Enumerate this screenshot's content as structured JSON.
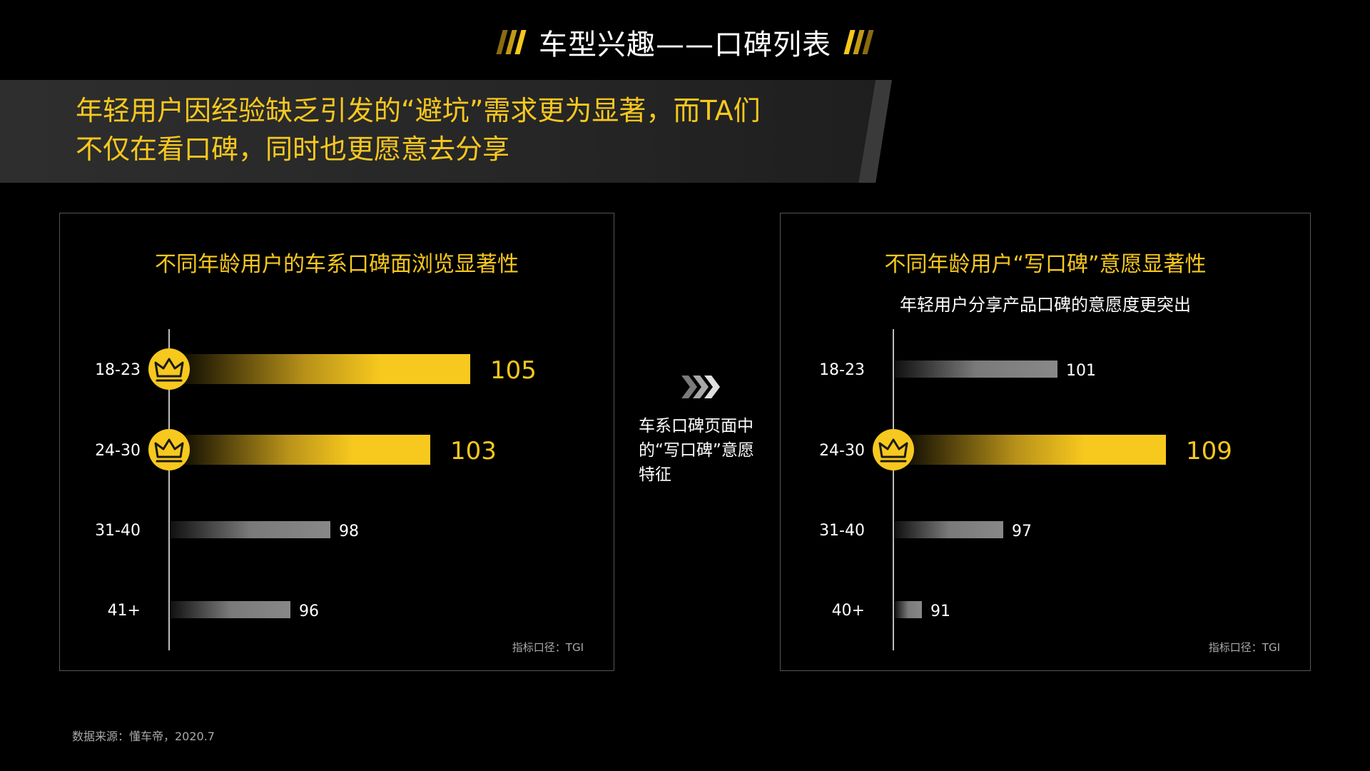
{
  "page_title": "车型兴趣——口碑列表",
  "banner": {
    "line1": "年轻用户因经验缺乏引发的“避坑”需求更为显著，而TA们",
    "line2": "不仅在看口碑，同时也更愿意去分享"
  },
  "colors": {
    "accent": "#f7c81e",
    "accent_dark": "#b8921a",
    "bar_gray": "#888888",
    "text": "#ffffff"
  },
  "middle": {
    "icon": "triple-chevron-right-icon",
    "text": "车系口碑页面中的“写口碑”意愿特征"
  },
  "source": "数据来源：懂车帝，2020.7",
  "chart_data": [
    {
      "type": "bar",
      "orientation": "horizontal",
      "title": "不同年龄用户的车系口碑面浏览显著性",
      "subtitle": "",
      "categories": [
        "18-23",
        "24-30",
        "31-40",
        "41+"
      ],
      "values": [
        105,
        103,
        98,
        96
      ],
      "highlighted": [
        true,
        true,
        false,
        false
      ],
      "highlight_icon": "crown-icon",
      "note": "指标口径：TGI",
      "grid": false,
      "legend": "none"
    },
    {
      "type": "bar",
      "orientation": "horizontal",
      "title": "不同年龄用户“写口碑”意愿显著性",
      "subtitle": "年轻用户分享产品口碑的意愿度更突出",
      "categories": [
        "18-23",
        "24-30",
        "31-40",
        "40+"
      ],
      "values": [
        101,
        109,
        97,
        91
      ],
      "highlighted": [
        false,
        true,
        false,
        false
      ],
      "highlight_icon": "crown-icon",
      "note": "指标口径：TGI",
      "grid": false,
      "legend": "none"
    }
  ]
}
